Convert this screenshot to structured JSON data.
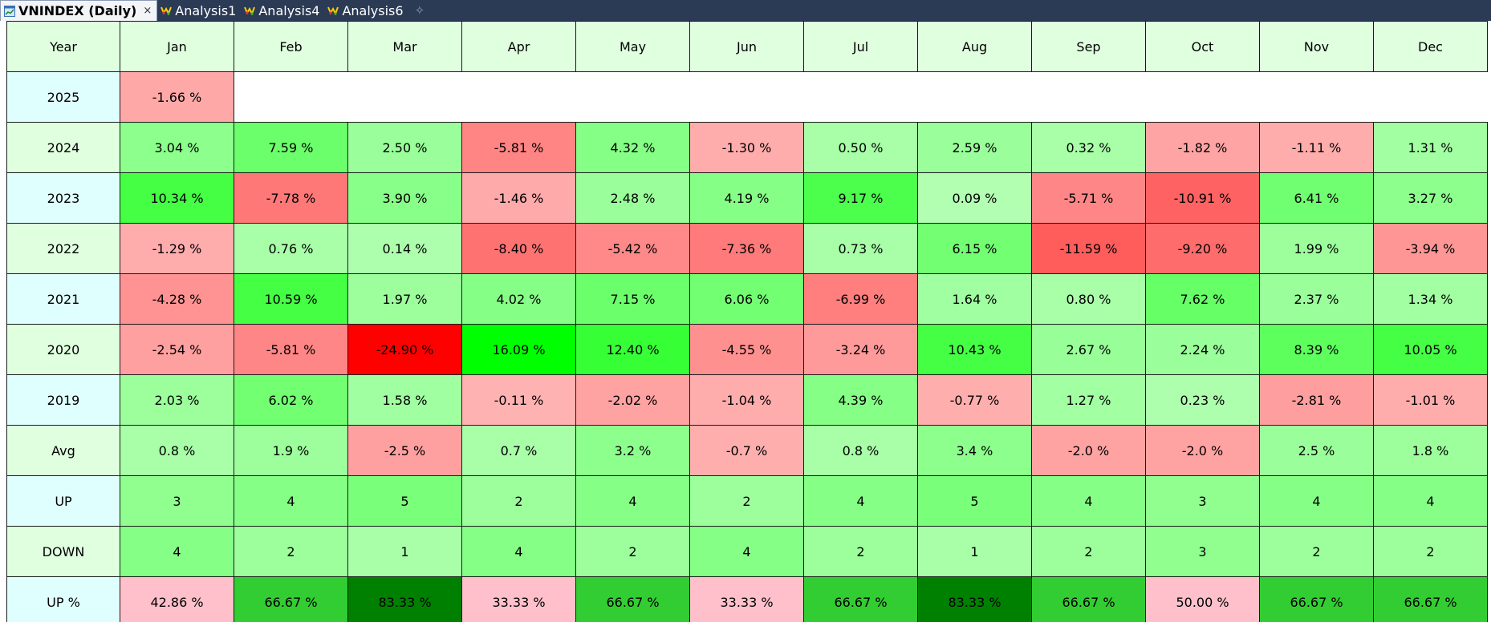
{
  "tabs": [
    {
      "label": "VNINDEX (Daily)",
      "icon": "chart-window-icon",
      "active": true
    },
    {
      "label": "Analysis1",
      "icon": "analysis-icon",
      "active": false
    },
    {
      "label": "Analysis4",
      "icon": "analysis-icon",
      "active": false
    },
    {
      "label": "Analysis6",
      "icon": "analysis-icon",
      "active": false
    }
  ],
  "tab_close": "×",
  "tab_add": "✧",
  "colors": {
    "tabbar_bg": "#2b3a55",
    "header_bg": "#dfffdf",
    "year_col_bg": "#dfffff"
  },
  "table": {
    "headers": [
      "Year",
      "Jan",
      "Feb",
      "Mar",
      "Apr",
      "May",
      "Jun",
      "Jul",
      "Aug",
      "Sep",
      "Oct",
      "Nov",
      "Dec"
    ],
    "rows": [
      {
        "label": "2025",
        "label_bg": "#dfffff",
        "cells": [
          {
            "text": "-1.66 %",
            "bg": "#ffa8a8"
          }
        ]
      },
      {
        "label": "2024",
        "label_bg": "#dfffdf",
        "cells": [
          {
            "text": "3.04 %",
            "bg": "#8cff8c"
          },
          {
            "text": "7.59 %",
            "bg": "#6cff6c"
          },
          {
            "text": "2.50 %",
            "bg": "#9aff9a"
          },
          {
            "text": "-5.81 %",
            "bg": "#ff8484"
          },
          {
            "text": "4.32 %",
            "bg": "#86ff86"
          },
          {
            "text": "-1.30 %",
            "bg": "#ffacac"
          },
          {
            "text": "0.50 %",
            "bg": "#a8ffa8"
          },
          {
            "text": "2.59 %",
            "bg": "#9aff9a"
          },
          {
            "text": "0.32 %",
            "bg": "#a8ffa8"
          },
          {
            "text": "-1.82 %",
            "bg": "#ffa4a4"
          },
          {
            "text": "-1.11 %",
            "bg": "#ffacac"
          },
          {
            "text": "1.31 %",
            "bg": "#a2ffa2"
          }
        ]
      },
      {
        "label": "2023",
        "label_bg": "#dfffff",
        "cells": [
          {
            "text": "10.34 %",
            "bg": "#44ff44"
          },
          {
            "text": "-7.78 %",
            "bg": "#ff7878"
          },
          {
            "text": "3.90 %",
            "bg": "#88ff88"
          },
          {
            "text": "-1.46 %",
            "bg": "#ffaaaa"
          },
          {
            "text": "2.48 %",
            "bg": "#9aff9a"
          },
          {
            "text": "4.19 %",
            "bg": "#86ff86"
          },
          {
            "text": "9.17 %",
            "bg": "#4cff4c"
          },
          {
            "text": "0.09 %",
            "bg": "#b2ffb2"
          },
          {
            "text": "-5.71 %",
            "bg": "#ff8686"
          },
          {
            "text": "-10.91 %",
            "bg": "#ff6262"
          },
          {
            "text": "6.41 %",
            "bg": "#70ff70"
          },
          {
            "text": "3.27 %",
            "bg": "#8cff8c"
          }
        ]
      },
      {
        "label": "2022",
        "label_bg": "#dfffdf",
        "cells": [
          {
            "text": "-1.29 %",
            "bg": "#ffacac"
          },
          {
            "text": "0.76 %",
            "bg": "#a8ffa8"
          },
          {
            "text": "0.14 %",
            "bg": "#adffad"
          },
          {
            "text": "-8.40 %",
            "bg": "#ff7272"
          },
          {
            "text": "-5.42 %",
            "bg": "#ff8888"
          },
          {
            "text": "-7.36 %",
            "bg": "#ff7a7a"
          },
          {
            "text": "0.73 %",
            "bg": "#a8ffa8"
          },
          {
            "text": "6.15 %",
            "bg": "#72ff72"
          },
          {
            "text": "-11.59 %",
            "bg": "#ff5c5c"
          },
          {
            "text": "-9.20 %",
            "bg": "#ff6c6c"
          },
          {
            "text": "1.99 %",
            "bg": "#9cff9c"
          },
          {
            "text": "-3.94 %",
            "bg": "#ff9696"
          }
        ]
      },
      {
        "label": "2021",
        "label_bg": "#dfffff",
        "cells": [
          {
            "text": "-4.28 %",
            "bg": "#ff9292"
          },
          {
            "text": "10.59 %",
            "bg": "#44ff44"
          },
          {
            "text": "1.97 %",
            "bg": "#9cff9c"
          },
          {
            "text": "4.02 %",
            "bg": "#86ff86"
          },
          {
            "text": "7.15 %",
            "bg": "#6cff6c"
          },
          {
            "text": "6.06 %",
            "bg": "#72ff72"
          },
          {
            "text": "-6.99 %",
            "bg": "#ff7e7e"
          },
          {
            "text": "1.64 %",
            "bg": "#a0ffa0"
          },
          {
            "text": "0.80 %",
            "bg": "#a8ffa8"
          },
          {
            "text": "7.62 %",
            "bg": "#66ff66"
          },
          {
            "text": "2.37 %",
            "bg": "#9aff9a"
          },
          {
            "text": "1.34 %",
            "bg": "#a2ffa2"
          }
        ]
      },
      {
        "label": "2020",
        "label_bg": "#dfffdf",
        "cells": [
          {
            "text": "-2.54 %",
            "bg": "#ffa0a0"
          },
          {
            "text": "-5.81 %",
            "bg": "#ff8686"
          },
          {
            "text": "-24.90 %",
            "bg": "#ff0000"
          },
          {
            "text": "16.09 %",
            "bg": "#00ff00"
          },
          {
            "text": "12.40 %",
            "bg": "#36ff36"
          },
          {
            "text": "-4.55 %",
            "bg": "#ff9090"
          },
          {
            "text": "-3.24 %",
            "bg": "#ff9a9a"
          },
          {
            "text": "10.43 %",
            "bg": "#44ff44"
          },
          {
            "text": "2.67 %",
            "bg": "#98ff98"
          },
          {
            "text": "2.24 %",
            "bg": "#9aff9a"
          },
          {
            "text": "8.39 %",
            "bg": "#5cff5c"
          },
          {
            "text": "10.05 %",
            "bg": "#44ff44"
          }
        ]
      },
      {
        "label": "2019",
        "label_bg": "#dfffff",
        "cells": [
          {
            "text": "2.03 %",
            "bg": "#9cff9c"
          },
          {
            "text": "6.02 %",
            "bg": "#72ff72"
          },
          {
            "text": "1.58 %",
            "bg": "#a0ffa0"
          },
          {
            "text": "-0.11 %",
            "bg": "#ffb2b2"
          },
          {
            "text": "-2.02 %",
            "bg": "#ffa2a2"
          },
          {
            "text": "-1.04 %",
            "bg": "#ffacac"
          },
          {
            "text": "4.39 %",
            "bg": "#86ff86"
          },
          {
            "text": "-0.77 %",
            "bg": "#ffaeae"
          },
          {
            "text": "1.27 %",
            "bg": "#a2ffa2"
          },
          {
            "text": "0.23 %",
            "bg": "#adffad"
          },
          {
            "text": "-2.81 %",
            "bg": "#ff9e9e"
          },
          {
            "text": "-1.01 %",
            "bg": "#ffacac"
          }
        ]
      },
      {
        "label": "Avg",
        "label_bg": "#dfffdf",
        "cells": [
          {
            "text": "0.8 %",
            "bg": "#a8ffa8"
          },
          {
            "text": "1.9 %",
            "bg": "#9cff9c"
          },
          {
            "text": "-2.5 %",
            "bg": "#ffa0a0"
          },
          {
            "text": "0.7 %",
            "bg": "#a8ffa8"
          },
          {
            "text": "3.2 %",
            "bg": "#8cff8c"
          },
          {
            "text": "-0.7 %",
            "bg": "#ffaeae"
          },
          {
            "text": "0.8 %",
            "bg": "#a8ffa8"
          },
          {
            "text": "3.4 %",
            "bg": "#8cff8c"
          },
          {
            "text": "-2.0 %",
            "bg": "#ffa2a2"
          },
          {
            "text": "-2.0 %",
            "bg": "#ffa2a2"
          },
          {
            "text": "2.5 %",
            "bg": "#9aff9a"
          },
          {
            "text": "1.8 %",
            "bg": "#9cff9c"
          }
        ]
      },
      {
        "label": "UP",
        "label_bg": "#dfffff",
        "cells": [
          {
            "text": "3",
            "bg": "#90ff90"
          },
          {
            "text": "4",
            "bg": "#86ff86"
          },
          {
            "text": "5",
            "bg": "#7aff7a"
          },
          {
            "text": "2",
            "bg": "#9cff9c"
          },
          {
            "text": "4",
            "bg": "#86ff86"
          },
          {
            "text": "2",
            "bg": "#9cff9c"
          },
          {
            "text": "4",
            "bg": "#86ff86"
          },
          {
            "text": "5",
            "bg": "#7aff7a"
          },
          {
            "text": "4",
            "bg": "#86ff86"
          },
          {
            "text": "3",
            "bg": "#90ff90"
          },
          {
            "text": "4",
            "bg": "#86ff86"
          },
          {
            "text": "4",
            "bg": "#86ff86"
          }
        ]
      },
      {
        "label": "DOWN",
        "label_bg": "#dfffdf",
        "cells": [
          {
            "text": "4",
            "bg": "#86ff86"
          },
          {
            "text": "2",
            "bg": "#9cff9c"
          },
          {
            "text": "1",
            "bg": "#a8ffa8"
          },
          {
            "text": "4",
            "bg": "#86ff86"
          },
          {
            "text": "2",
            "bg": "#9cff9c"
          },
          {
            "text": "4",
            "bg": "#86ff86"
          },
          {
            "text": "2",
            "bg": "#9cff9c"
          },
          {
            "text": "1",
            "bg": "#a8ffa8"
          },
          {
            "text": "2",
            "bg": "#9cff9c"
          },
          {
            "text": "3",
            "bg": "#90ff90"
          },
          {
            "text": "2",
            "bg": "#9cff9c"
          },
          {
            "text": "2",
            "bg": "#9cff9c"
          }
        ]
      },
      {
        "label": "UP %",
        "label_bg": "#dfffff",
        "cells": [
          {
            "text": "42.86 %",
            "bg": "#ffc0cb"
          },
          {
            "text": "66.67 %",
            "bg": "#32cd32"
          },
          {
            "text": "83.33 %",
            "bg": "#008000"
          },
          {
            "text": "33.33 %",
            "bg": "#ffc0cb"
          },
          {
            "text": "66.67 %",
            "bg": "#32cd32"
          },
          {
            "text": "33.33 %",
            "bg": "#ffc0cb"
          },
          {
            "text": "66.67 %",
            "bg": "#32cd32"
          },
          {
            "text": "83.33 %",
            "bg": "#008000"
          },
          {
            "text": "66.67 %",
            "bg": "#32cd32"
          },
          {
            "text": "50.00 %",
            "bg": "#ffc0cb"
          },
          {
            "text": "66.67 %",
            "bg": "#32cd32"
          },
          {
            "text": "66.67 %",
            "bg": "#32cd32"
          }
        ]
      }
    ]
  }
}
